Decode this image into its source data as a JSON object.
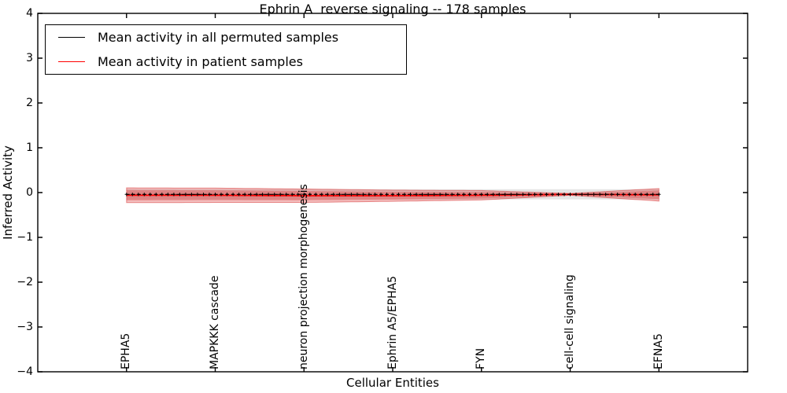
{
  "title": "Ephrin A  reverse signaling -- 178 samples",
  "axes": {
    "xlabel": "Cellular Entities",
    "ylabel": "Inferred Activity"
  },
  "legend": {
    "items": [
      {
        "label": "Mean activity in all permuted samples",
        "color": "#000000"
      },
      {
        "label": "Mean activity in patient samples",
        "color": "#ff0000"
      }
    ]
  },
  "chart_data": {
    "type": "line",
    "title": "Ephrin A  reverse signaling -- 178 samples",
    "n_samples": 178,
    "xlabel": "Cellular Entities",
    "ylabel": "Inferred Activity",
    "ylim": [
      -4,
      4
    ],
    "ytick_labels": [
      "4",
      "3",
      "2",
      "1",
      "0",
      "−1",
      "−2",
      "−3",
      "−4"
    ],
    "ytick_values": [
      4,
      3,
      2,
      1,
      0,
      -1,
      -2,
      -3,
      -4
    ],
    "categories": [
      "EPHA5",
      "MAPKKK cascade",
      "neuron projection morphogenesis",
      "Ephrin A5/EPHA5",
      "FYN",
      "cell-cell signaling",
      "EFNA5"
    ],
    "n_points": 91,
    "grid": false,
    "legend_position": "upper left",
    "series": [
      {
        "name": "Mean activity in all permuted samples",
        "color": "#000000",
        "line_style": "dashed",
        "marker": "plus",
        "values_at_ticks": [
          -0.04,
          -0.04,
          -0.04,
          -0.04,
          -0.04,
          -0.04,
          -0.04
        ]
      },
      {
        "name": "Mean activity in patient samples",
        "color": "#ff0000",
        "line_style": "solid",
        "marker": "none",
        "values_at_ticks": [
          -0.06,
          -0.06,
          -0.07,
          -0.07,
          -0.06,
          -0.04,
          -0.05
        ]
      }
    ],
    "bands": [
      {
        "name": "permuted samples spread",
        "color": "#000000",
        "alpha": 0.1,
        "center_series": 0,
        "halfwidth_at_ticks": [
          0.115,
          0.115,
          0.115,
          0.115,
          0.115,
          0.115,
          0.115
        ]
      },
      {
        "name": "patient samples spread",
        "color": "#d62728",
        "alpha": 0.3,
        "center_series": 1,
        "halfwidth_at_ticks": [
          0.165,
          0.16,
          0.15,
          0.125,
          0.105,
          0.02,
          0.14
        ]
      }
    ]
  }
}
